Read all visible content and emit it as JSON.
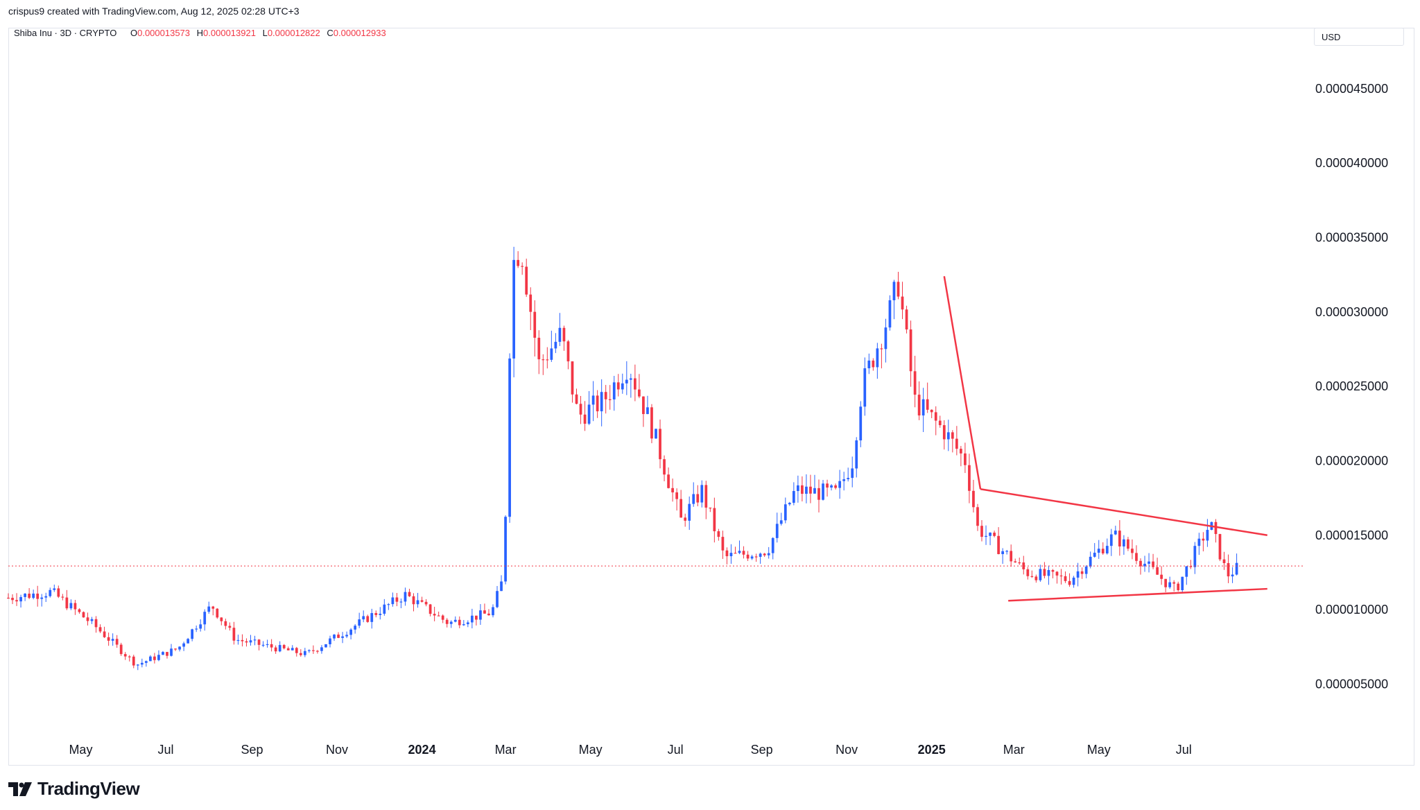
{
  "header": {
    "credit": "crispus9 created with TradingView.com, Aug 12, 2025 02:28 UTC+3",
    "symbol": "Shiba Inu · 3D · CRYPTO",
    "ohlc": [
      {
        "key": "O",
        "value": "0.000013573"
      },
      {
        "key": "H",
        "value": "0.000013921"
      },
      {
        "key": "L",
        "value": "0.000012822"
      },
      {
        "key": "C",
        "value": "0.000012933"
      }
    ],
    "currency": "USD"
  },
  "footer": {
    "brand": "TradingView"
  },
  "colors": {
    "up": "#2962ff",
    "down": "#f23645",
    "trendline": "#f23645",
    "last_price_line": "#f23645"
  },
  "chart_data": {
    "type": "candlestick",
    "timeframe": "3D",
    "last_close": 1.2933e-05,
    "y_ticks": [
      {
        "value": 4.5e-05,
        "label": "0.000045000"
      },
      {
        "value": 4e-05,
        "label": "0.000040000"
      },
      {
        "value": 3.5e-05,
        "label": "0.000035000"
      },
      {
        "value": 3e-05,
        "label": "0.000030000"
      },
      {
        "value": 2.5e-05,
        "label": "0.000025000"
      },
      {
        "value": 2e-05,
        "label": "0.000020000"
      },
      {
        "value": 1.5e-05,
        "label": "0.000015000"
      },
      {
        "value": 1e-05,
        "label": "0.000010000"
      },
      {
        "value": 5e-06,
        "label": "0.000005000"
      }
    ],
    "ylim": [
      1.2e-06,
      4.9e-05
    ],
    "x_start": "2023-03-10",
    "x_end": "2025-09-25",
    "x_ticks": [
      {
        "date": "2023-05-01",
        "label": "May",
        "bold": false
      },
      {
        "date": "2023-07-01",
        "label": "Jul",
        "bold": false
      },
      {
        "date": "2023-09-01",
        "label": "Sep",
        "bold": false
      },
      {
        "date": "2023-11-01",
        "label": "Nov",
        "bold": false
      },
      {
        "date": "2024-01-01",
        "label": "2024",
        "bold": true
      },
      {
        "date": "2024-03-01",
        "label": "Mar",
        "bold": false
      },
      {
        "date": "2024-05-01",
        "label": "May",
        "bold": false
      },
      {
        "date": "2024-07-01",
        "label": "Jul",
        "bold": false
      },
      {
        "date": "2024-09-01",
        "label": "Sep",
        "bold": false
      },
      {
        "date": "2024-11-01",
        "label": "Nov",
        "bold": false
      },
      {
        "date": "2025-01-01",
        "label": "2025",
        "bold": true
      },
      {
        "date": "2025-03-01",
        "label": "Mar",
        "bold": false
      },
      {
        "date": "2025-05-01",
        "label": "May",
        "bold": false
      },
      {
        "date": "2025-07-01",
        "label": "Jul",
        "bold": false
      }
    ],
    "close_anchors": [
      {
        "date": "2023-03-10",
        "close": 1.08e-05
      },
      {
        "date": "2023-04-10",
        "close": 1.12e-05
      },
      {
        "date": "2023-05-10",
        "close": 9e-06
      },
      {
        "date": "2023-06-10",
        "close": 6.3e-06
      },
      {
        "date": "2023-07-10",
        "close": 7.4e-06
      },
      {
        "date": "2023-08-03",
        "close": 1.03e-05
      },
      {
        "date": "2023-08-20",
        "close": 8e-06
      },
      {
        "date": "2023-10-10",
        "close": 7e-06
      },
      {
        "date": "2023-11-10",
        "close": 8.7e-06
      },
      {
        "date": "2023-12-20",
        "close": 1.1e-05
      },
      {
        "date": "2024-01-20",
        "close": 9.1e-06
      },
      {
        "date": "2024-02-20",
        "close": 9.8e-06
      },
      {
        "date": "2024-02-29",
        "close": 1.23e-05
      },
      {
        "date": "2024-03-03",
        "close": 2.5e-05
      },
      {
        "date": "2024-03-06",
        "close": 3.32e-05
      },
      {
        "date": "2024-03-12",
        "close": 3.45e-05
      },
      {
        "date": "2024-03-25",
        "close": 2.65e-05
      },
      {
        "date": "2024-04-10",
        "close": 2.85e-05
      },
      {
        "date": "2024-04-22",
        "close": 2.3e-05
      },
      {
        "date": "2024-05-10",
        "close": 2.4e-05
      },
      {
        "date": "2024-05-28",
        "close": 2.65e-05
      },
      {
        "date": "2024-06-15",
        "close": 2.2e-05
      },
      {
        "date": "2024-07-05",
        "close": 1.6e-05
      },
      {
        "date": "2024-07-20",
        "close": 1.8e-05
      },
      {
        "date": "2024-08-05",
        "close": 1.35e-05
      },
      {
        "date": "2024-09-05",
        "close": 1.4e-05
      },
      {
        "date": "2024-09-25",
        "close": 1.8e-05
      },
      {
        "date": "2024-10-25",
        "close": 1.78e-05
      },
      {
        "date": "2024-11-05",
        "close": 2e-05
      },
      {
        "date": "2024-11-12",
        "close": 2.5e-05
      },
      {
        "date": "2024-12-02",
        "close": 3e-05
      },
      {
        "date": "2024-12-08",
        "close": 3.2e-05
      },
      {
        "date": "2024-12-20",
        "close": 2.4e-05
      },
      {
        "date": "2025-01-10",
        "close": 2.2e-05
      },
      {
        "date": "2025-01-25",
        "close": 2e-05
      },
      {
        "date": "2025-02-03",
        "close": 1.55e-05
      },
      {
        "date": "2025-03-10",
        "close": 1.25e-05
      },
      {
        "date": "2025-04-10",
        "close": 1.2e-05
      },
      {
        "date": "2025-05-12",
        "close": 1.5e-05
      },
      {
        "date": "2025-06-10",
        "close": 1.25e-05
      },
      {
        "date": "2025-06-25",
        "close": 1.13e-05
      },
      {
        "date": "2025-07-20",
        "close": 1.58e-05
      },
      {
        "date": "2025-08-01",
        "close": 1.23e-05
      },
      {
        "date": "2025-08-10",
        "close": 1.29e-05
      }
    ],
    "trendlines": [
      {
        "name": "downtrend",
        "points": [
          {
            "date": "2025-01-10",
            "value": 3.24e-05
          },
          {
            "date": "2025-02-05",
            "value": 1.81e-05
          }
        ]
      },
      {
        "name": "upper",
        "points": [
          {
            "date": "2025-02-05",
            "value": 1.81e-05
          },
          {
            "date": "2025-08-30",
            "value": 1.5e-05
          }
        ]
      },
      {
        "name": "lower",
        "points": [
          {
            "date": "2025-02-25",
            "value": 1.06e-05
          },
          {
            "date": "2025-08-30",
            "value": 1.14e-05
          }
        ]
      }
    ]
  }
}
